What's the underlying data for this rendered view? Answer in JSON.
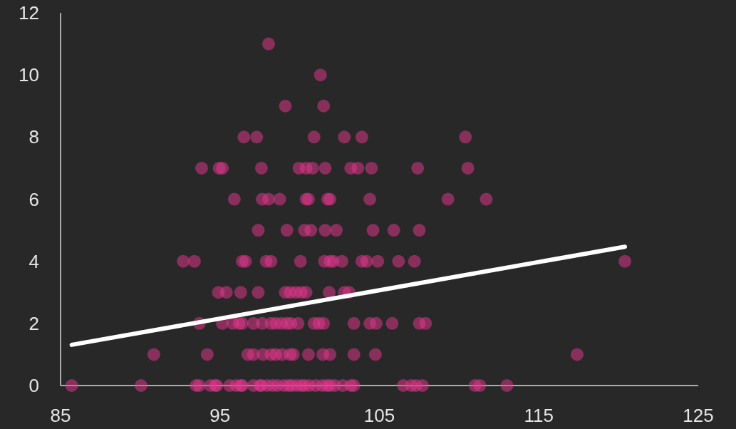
{
  "chart_data": {
    "type": "scatter",
    "xlim": [
      85,
      125
    ],
    "ylim": [
      0,
      12
    ],
    "xticks": [
      85,
      95,
      105,
      115,
      125
    ],
    "yticks": [
      0,
      2,
      4,
      6,
      8,
      10,
      12
    ],
    "grid": false,
    "series": [
      {
        "color": "#e8358f",
        "marker": "circle",
        "x": [
          85.7,
          90.05,
          93.5,
          93.7,
          94.4,
          94.7,
          94.8,
          95.6,
          96.0,
          96.3,
          96.4,
          97.1,
          97.5,
          97.6,
          97.96,
          98.3,
          98.6,
          99.0,
          99.3,
          99.5,
          99.8,
          100.1,
          100.3,
          100.6,
          101.0,
          101.4,
          101.7,
          101.9,
          102.2,
          102.7,
          103.2,
          103.4,
          106.5,
          107.0,
          107.3,
          107.7,
          111.0,
          111.3,
          113.0,
          90.85,
          94.2,
          96.75,
          97.1,
          97.7,
          98.2,
          98.5,
          98.9,
          99.4,
          99.6,
          100.55,
          101.45,
          101.9,
          103.4,
          104.75,
          117.4,
          93.7,
          95.15,
          95.8,
          96.2,
          96.4,
          97.1,
          97.65,
          98.2,
          98.5,
          98.85,
          99.2,
          99.45,
          99.9,
          100.9,
          101.2,
          101.5,
          103.4,
          104.4,
          104.8,
          105.8,
          107.5,
          107.9,
          94.9,
          95.4,
          96.3,
          97.4,
          99.1,
          99.4,
          99.75,
          100.1,
          100.4,
          101.85,
          102.8,
          103.1,
          92.7,
          93.4,
          96.4,
          96.6,
          97.9,
          98.2,
          100.05,
          101.55,
          101.9,
          102.1,
          102.65,
          103.9,
          104.2,
          104.9,
          106.2,
          107.2,
          120.4,
          97.4,
          99.2,
          100.3,
          100.7,
          101.6,
          102.3,
          104.6,
          105.9,
          107.5,
          95.9,
          97.65,
          98.05,
          98.75,
          100.4,
          100.55,
          101.75,
          101.9,
          104.4,
          109.3,
          111.7,
          93.85,
          94.95,
          95.15,
          97.6,
          99.95,
          100.4,
          100.8,
          101.6,
          103.2,
          103.65,
          104.5,
          107.4,
          110.55,
          96.5,
          97.3,
          100.9,
          102.8,
          103.9,
          110.4,
          99.1,
          101.5,
          101.3,
          98.05
        ],
        "values": [
          0,
          0,
          0,
          0,
          0,
          0,
          0,
          0,
          0,
          0,
          0,
          0,
          0,
          0,
          0,
          0,
          0,
          0,
          0,
          0,
          0,
          0,
          0,
          0,
          0,
          0,
          0,
          0,
          0,
          0,
          0,
          0,
          0,
          0,
          0,
          0,
          0,
          0,
          0,
          1,
          1,
          1,
          1,
          1,
          1,
          1,
          1,
          1,
          1,
          1,
          1,
          1,
          1,
          1,
          1,
          2,
          2,
          2,
          2,
          2,
          2,
          2,
          2,
          2,
          2,
          2,
          2,
          2,
          2,
          2,
          2,
          2,
          2,
          2,
          2,
          2,
          2,
          3,
          3,
          3,
          3,
          3,
          3,
          3,
          3,
          3,
          3,
          3,
          3,
          4,
          4,
          4,
          4,
          4,
          4,
          4,
          4,
          4,
          4,
          4,
          4,
          4,
          4,
          4,
          4,
          4,
          5,
          5,
          5,
          5,
          5,
          5,
          5,
          5,
          5,
          6,
          6,
          6,
          6,
          6,
          6,
          6,
          6,
          6,
          6,
          6,
          7,
          7,
          7,
          7,
          7,
          7,
          7,
          7,
          7,
          7,
          7,
          7,
          7,
          8,
          8,
          8,
          8,
          8,
          8,
          9,
          9,
          10,
          11
        ]
      },
      {
        "type": "line",
        "color": "#ffffff",
        "marker": "none",
        "line_style": "solid",
        "x": [
          85.7,
          120.4
        ],
        "values": [
          1.31,
          4.47
        ]
      }
    ]
  }
}
